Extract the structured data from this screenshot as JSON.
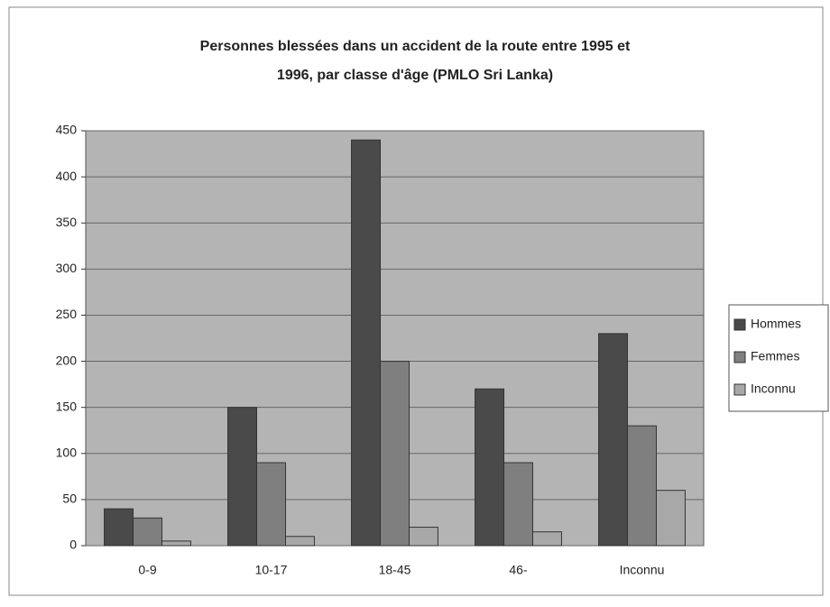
{
  "chart_data": {
    "type": "bar",
    "title": [
      "Personnes blessées dans un accident de la route entre 1995 et",
      "1996, par classe d'âge (PMLO Sri Lanka)"
    ],
    "categories": [
      "0-9",
      "10-17",
      "18-45",
      "46-",
      "Inconnu"
    ],
    "series": [
      {
        "name": "Hommes",
        "color": "#4a4a4a",
        "values": [
          40,
          150,
          440,
          170,
          230
        ]
      },
      {
        "name": "Femmes",
        "color": "#7f7f7f",
        "values": [
          30,
          90,
          200,
          90,
          130
        ]
      },
      {
        "name": "Inconnu",
        "color": "#a8a8a8",
        "values": [
          5,
          10,
          20,
          15,
          60
        ]
      }
    ],
    "ylim": [
      0,
      450
    ],
    "yticks": [
      0,
      50,
      100,
      150,
      200,
      250,
      300,
      350,
      400,
      450
    ],
    "grid": true,
    "legend": "right"
  }
}
